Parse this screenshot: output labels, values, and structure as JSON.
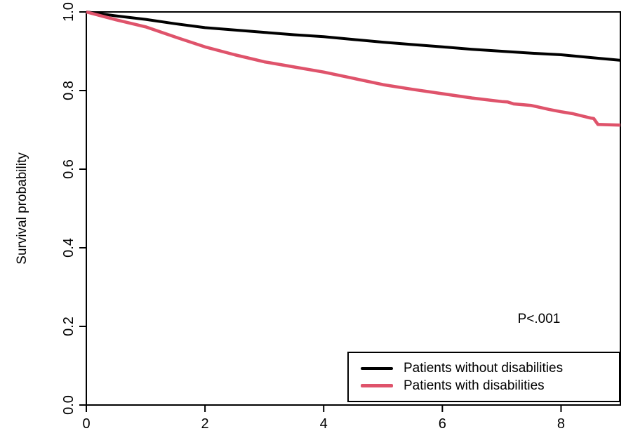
{
  "chart_data": {
    "type": "line",
    "subtype": "kaplan-meier-survival",
    "title": "",
    "xlabel": "",
    "ylabel": "Survival probability",
    "xlim": [
      0,
      9
    ],
    "ylim": [
      0.0,
      1.0
    ],
    "x_ticks": [
      "0",
      "2",
      "4",
      "6",
      "8"
    ],
    "x_tick_values": [
      0,
      2,
      4,
      6,
      8
    ],
    "y_ticks": [
      "0.0",
      "0.2",
      "0.4",
      "0.6",
      "0.8",
      "1.0"
    ],
    "y_tick_values": [
      0.0,
      0.2,
      0.4,
      0.6,
      0.8,
      1.0
    ],
    "grid": false,
    "box": true,
    "annotation": {
      "text": "P<.001",
      "x": 7.6,
      "y": 0.215
    },
    "legend": {
      "position": "bottom-right",
      "border": true
    },
    "series": [
      {
        "name": "Patients without disabilities",
        "color": "#000000",
        "line_width": 4,
        "x": [
          0,
          0.5,
          1,
          1.5,
          2,
          2.5,
          3,
          3.5,
          4,
          4.5,
          5,
          5.5,
          6,
          6.5,
          7,
          7.5,
          8,
          8.5,
          9
        ],
        "y": [
          1.0,
          0.99,
          0.981,
          0.97,
          0.96,
          0.954,
          0.948,
          0.942,
          0.937,
          0.93,
          0.923,
          0.917,
          0.911,
          0.905,
          0.9,
          0.895,
          0.891,
          0.884,
          0.877
        ]
      },
      {
        "name": "Patients with disabilities",
        "color": "#DF536B",
        "line_width": 4.5,
        "x": [
          0,
          0.5,
          1,
          1.5,
          2,
          2.5,
          3,
          3.5,
          4,
          4.5,
          5,
          5.5,
          6,
          6.5,
          7,
          7.1,
          7.2,
          7.5,
          7.8,
          8,
          8.2,
          8.5,
          8.55,
          8.62,
          9
        ],
        "y": [
          1.0,
          0.98,
          0.962,
          0.936,
          0.911,
          0.891,
          0.873,
          0.86,
          0.847,
          0.831,
          0.815,
          0.803,
          0.792,
          0.781,
          0.772,
          0.771,
          0.766,
          0.762,
          0.752,
          0.746,
          0.741,
          0.73,
          0.729,
          0.714,
          0.712
        ]
      }
    ]
  }
}
